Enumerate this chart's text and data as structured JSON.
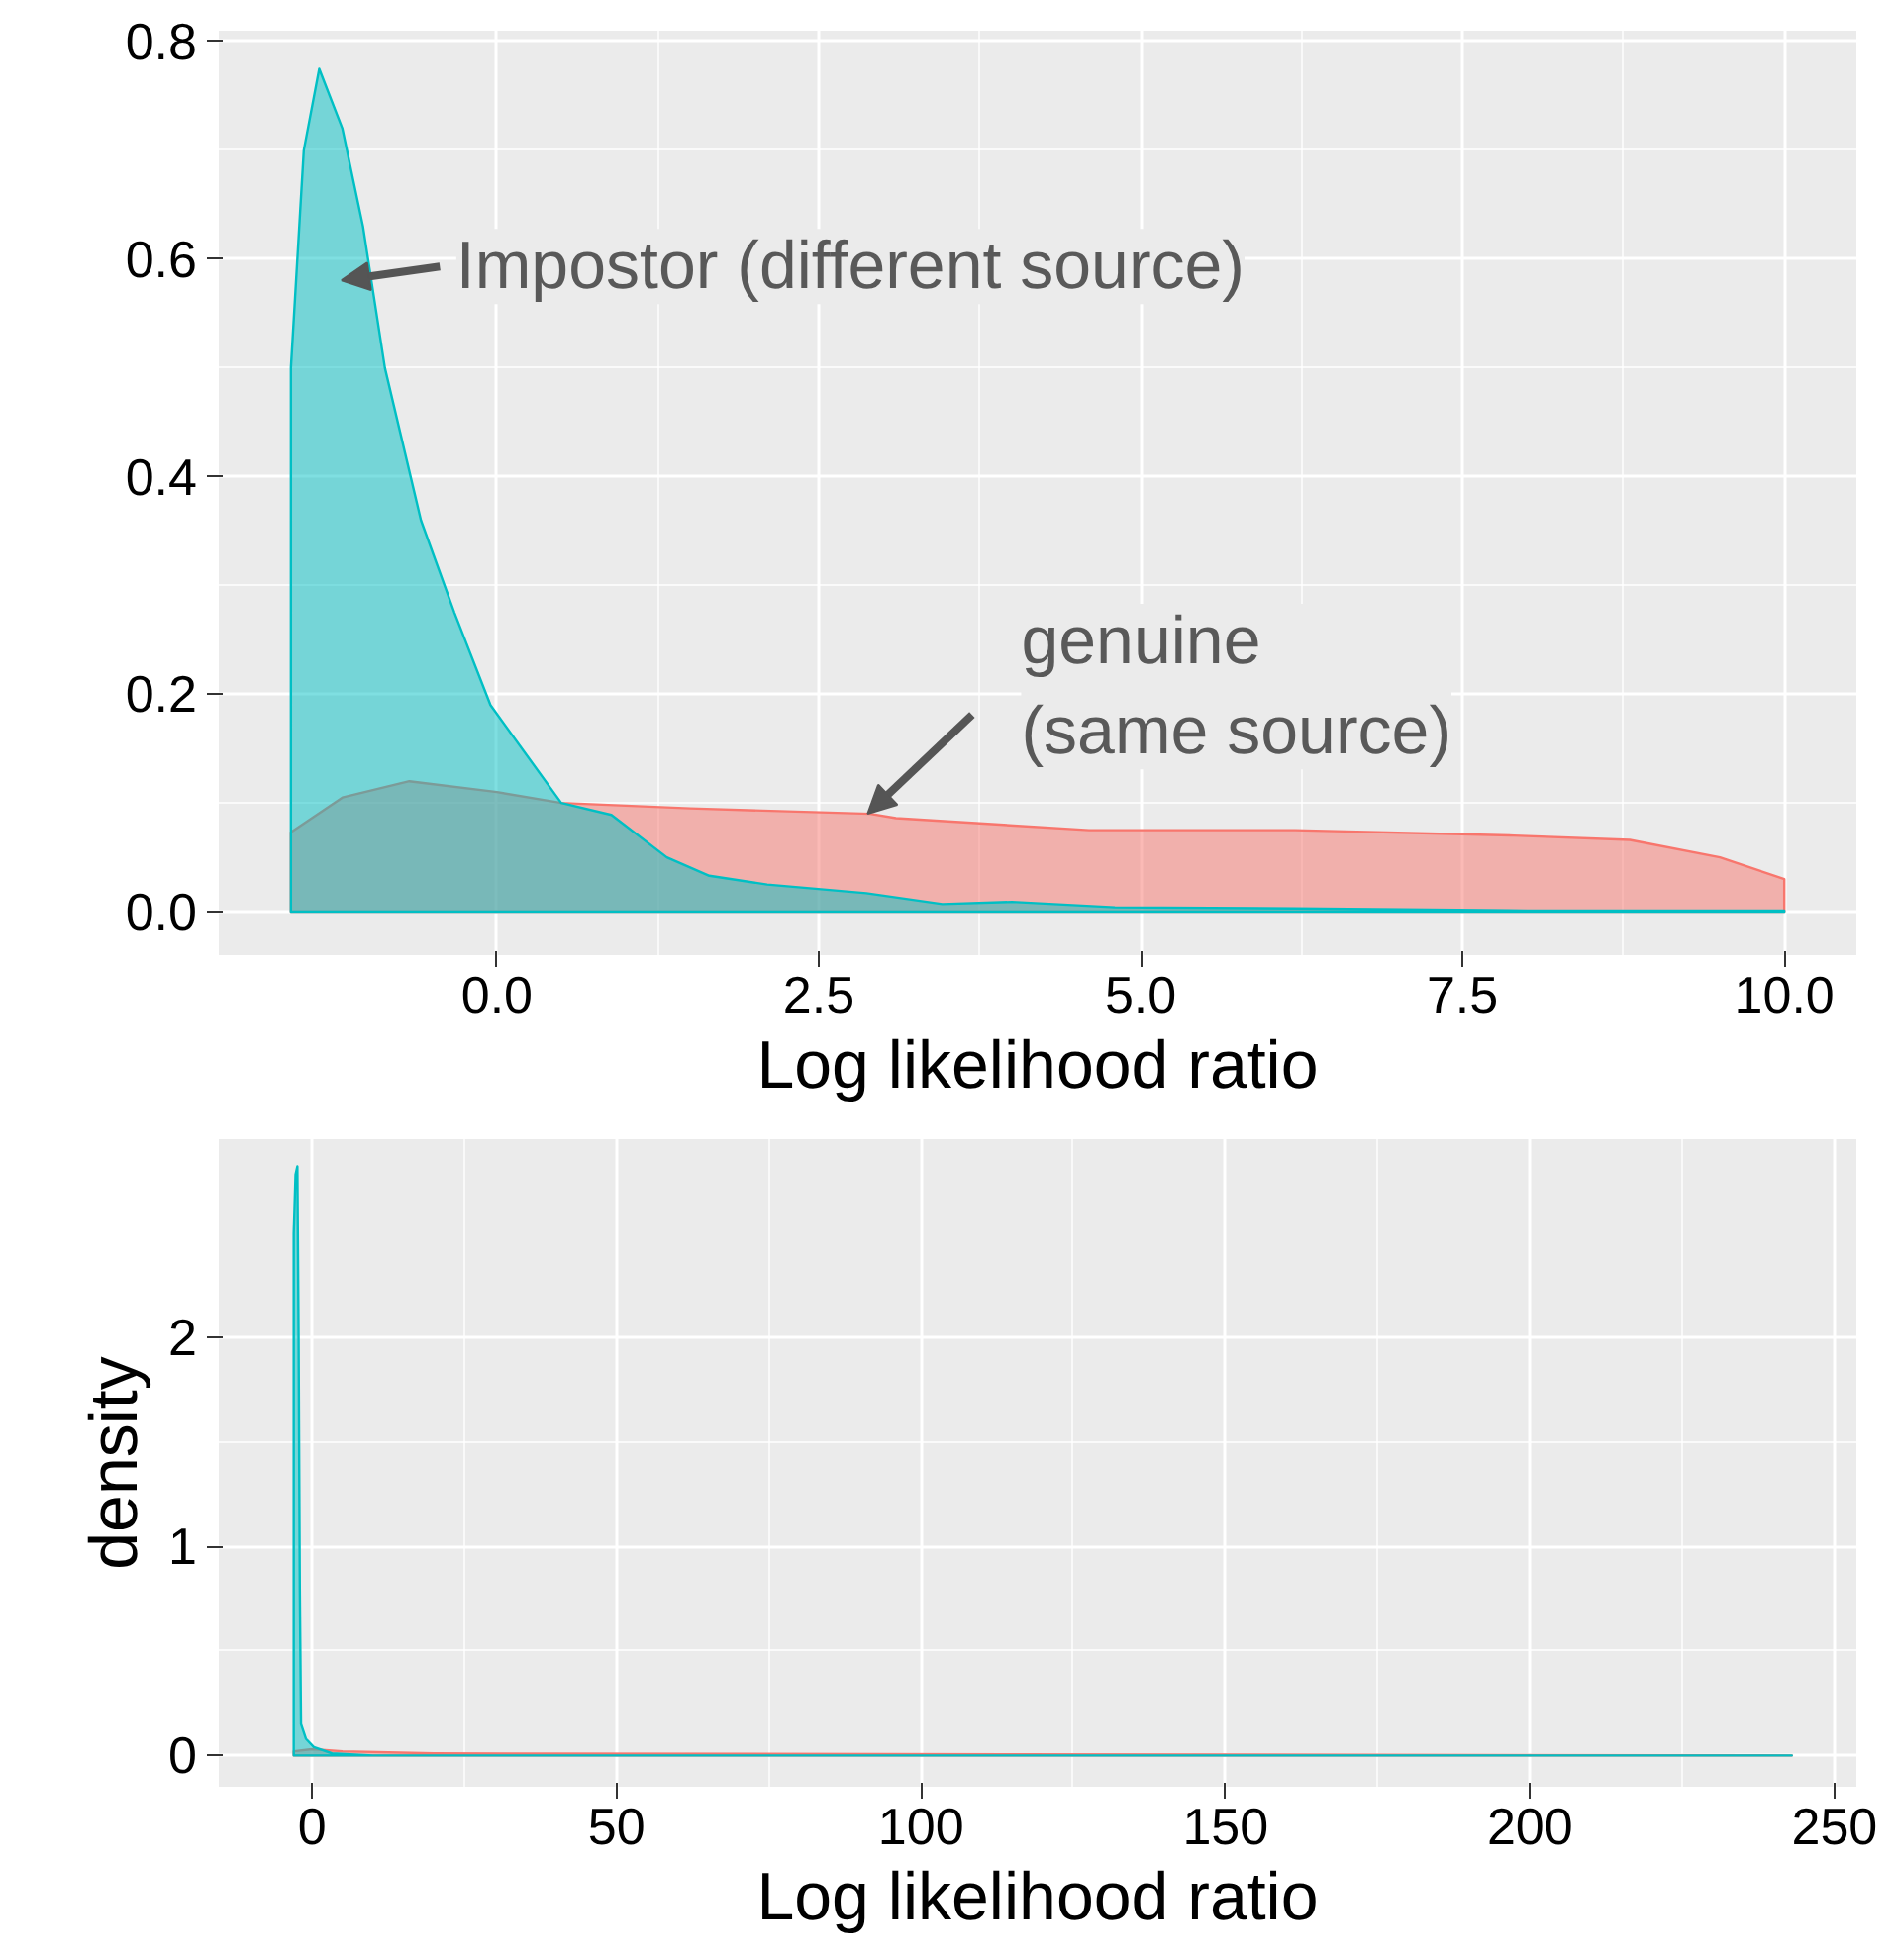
{
  "chart_data": [
    {
      "type": "area",
      "xlabel": "Log likelihood ratio",
      "xlim": [
        -2.16,
        10.56
      ],
      "ylim": [
        -0.04,
        0.81
      ],
      "xticks": [
        {
          "value": 0,
          "label": "0.0"
        },
        {
          "value": 2.5,
          "label": "2.5"
        },
        {
          "value": 5,
          "label": "5.0"
        },
        {
          "value": 7.5,
          "label": "7.5"
        },
        {
          "value": 10,
          "label": "10.0"
        }
      ],
      "yticks": [
        {
          "value": 0,
          "label": "0.0"
        },
        {
          "value": 0.2,
          "label": "0.2"
        },
        {
          "value": 0.4,
          "label": "0.4"
        },
        {
          "value": 0.6,
          "label": "0.6"
        },
        {
          "value": 0.8,
          "label": "0.8"
        }
      ],
      "grid": true,
      "series": [
        {
          "color": "#f8766d",
          "x": [
            -1.6,
            -1.2,
            -0.68,
            0.0,
            0.5,
            1.5,
            2.9,
            3.1,
            4.6,
            6.2,
            7.9,
            8.8,
            9.5,
            10.0
          ],
          "values": [
            0.073,
            0.105,
            0.12,
            0.11,
            0.1,
            0.095,
            0.09,
            0.086,
            0.075,
            0.075,
            0.07,
            0.066,
            0.05,
            0.03
          ]
        },
        {
          "color": "#00bfc4",
          "x": [
            -1.6,
            -1.5,
            -1.38,
            -1.2,
            -1.04,
            -0.87,
            -0.59,
            -0.33,
            -0.05,
            0.5,
            0.89,
            1.32,
            1.65,
            2.1,
            2.87,
            3.46,
            4.0,
            4.8,
            6.2,
            8.0,
            10.0
          ],
          "values": [
            0.5,
            0.7,
            0.775,
            0.72,
            0.63,
            0.5,
            0.36,
            0.275,
            0.19,
            0.1,
            0.089,
            0.05,
            0.033,
            0.025,
            0.017,
            0.007,
            0.009,
            0.004,
            0.003,
            0.001,
            0.001
          ]
        }
      ],
      "annotations": [
        "Impostor (different source)",
        {
          "text": "genuine\n(same source)",
          "x": 2.88,
          "y": 0.09
        }
      ]
    },
    {
      "type": "area",
      "xlabel": "Log likelihood ratio",
      "ylabel": "density",
      "xlim": [
        -15.3,
        253.6
      ],
      "ylim": [
        -0.15,
        2.95
      ],
      "xticks": [
        0,
        50,
        100,
        150,
        200,
        250
      ],
      "yticks": [
        0,
        1,
        2
      ],
      "grid": true,
      "series": [
        {
          "color": "#f8766d",
          "x": [
            -3.0,
            0,
            5,
            20,
            243
          ],
          "values": [
            0.02,
            0.03,
            0.02,
            0.01,
            0.0
          ]
        },
        {
          "color": "#00bfc4",
          "x": [
            -3.0,
            -2.7,
            -2.4,
            -2.2,
            -2.0,
            -1.8,
            -1.0,
            0.3,
            3.3,
            10,
            243
          ],
          "values": [
            2.5,
            2.78,
            2.82,
            2.0,
            0.8,
            0.15,
            0.08,
            0.04,
            0.01,
            0.0,
            0.0
          ]
        }
      ]
    }
  ]
}
